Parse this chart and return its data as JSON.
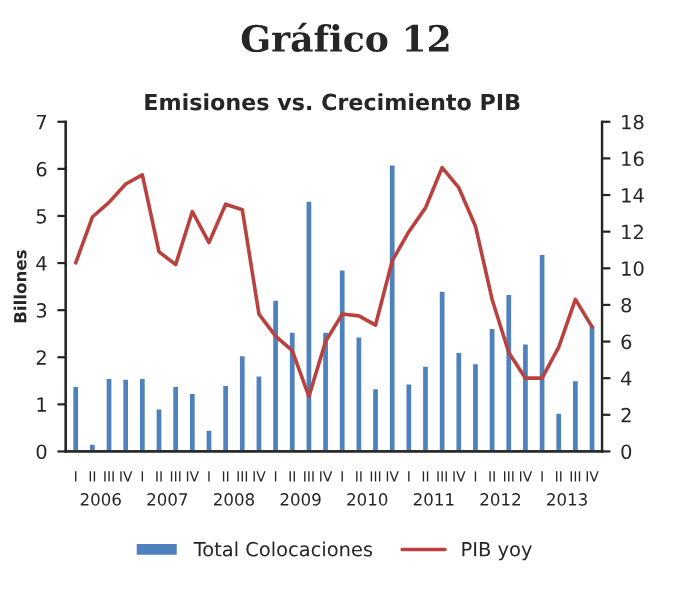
{
  "chart_data": {
    "type": "bar",
    "title": "Gráfico 12",
    "subtitle": "Emisiones vs. Crecimiento PIB",
    "ylabel": "Billones",
    "categories": [
      "I",
      "II",
      "III",
      "IV",
      "I",
      "II",
      "III",
      "IV",
      "I",
      "II",
      "III",
      "IV",
      "I",
      "II",
      "III",
      "IV",
      "I",
      "II",
      "III",
      "IV",
      "I",
      "II",
      "III",
      "IV",
      "I",
      "II",
      "III",
      "IV",
      "I",
      "II",
      "III",
      "IV"
    ],
    "series": [
      {
        "name": "Total Colocaciones",
        "color": "#4f81bd",
        "values": [
          1.4,
          0.17,
          1.57,
          1.55,
          1.57,
          0.92,
          1.4,
          1.25,
          0.47,
          1.42,
          2.05,
          1.62,
          3.23,
          2.55,
          5.33,
          2.55,
          3.87,
          2.45,
          1.35,
          6.1,
          1.45,
          1.83,
          3.42,
          2.12,
          1.88,
          2.63,
          3.35,
          2.3,
          4.2,
          0.83,
          1.52,
          2.7
        ]
      },
      {
        "name": "PIB yoy",
        "type": "line",
        "axis": "y2",
        "color": "#b9413f",
        "values": [
          10.3,
          12.8,
          13.6,
          14.6,
          15.1,
          10.9,
          10.2,
          13.1,
          11.4,
          13.5,
          13.2,
          7.5,
          6.3,
          5.5,
          3.0,
          6.0,
          7.5,
          7.4,
          6.9,
          10.4,
          12.0,
          13.3,
          15.5,
          14.4,
          12.3,
          8.3,
          5.4,
          4.0,
          4.0,
          5.7,
          8.3,
          6.8
        ]
      }
    ],
    "annotations": [
      "2006",
      "2007",
      "2008",
      "2009",
      "2010",
      "2011",
      "2012",
      "2013"
    ],
    "ylim": [
      0,
      7
    ],
    "yticks": [
      0,
      1,
      2,
      3,
      4,
      5,
      6,
      7
    ],
    "y2lim": [
      0,
      18
    ],
    "y2ticks": [
      0,
      2,
      4,
      6,
      8,
      10,
      12,
      14,
      16,
      18
    ],
    "legend": "bottom",
    "grid": false
  }
}
